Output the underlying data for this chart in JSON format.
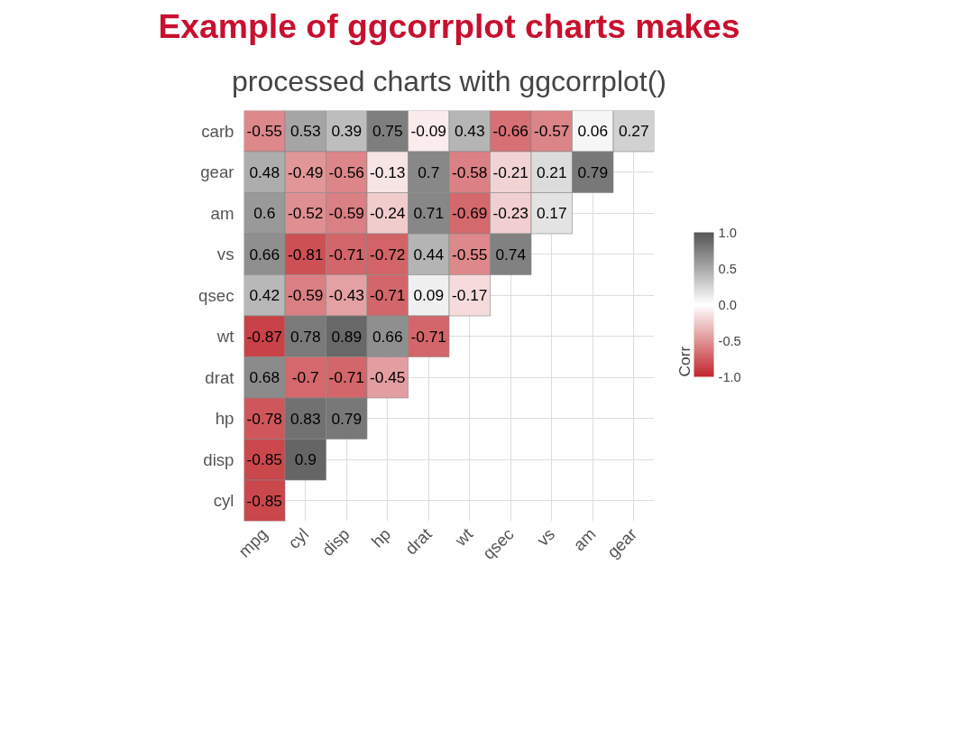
{
  "chart_data": {
    "type": "heatmap",
    "title": "Example of ggcorrplot charts makes",
    "subtitle": "processed charts with ggcorrplot()",
    "clabel": "Corr",
    "categories": [
      "mpg",
      "cyl",
      "disp",
      "hp",
      "drat",
      "wt",
      "qsec",
      "vs",
      "am",
      "gear"
    ],
    "y_categories": [
      "carb",
      "gear",
      "am",
      "vs",
      "qsec",
      "wt",
      "drat",
      "hp",
      "disp",
      "cyl"
    ],
    "cells": [
      [
        -0.55,
        0.53,
        0.39,
        0.75,
        -0.09,
        0.43,
        -0.66,
        -0.57,
        0.06,
        0.27
      ],
      [
        0.48,
        -0.49,
        -0.56,
        -0.13,
        0.7,
        -0.58,
        -0.21,
        0.21,
        0.79,
        null
      ],
      [
        0.6,
        -0.52,
        -0.59,
        -0.24,
        0.71,
        -0.69,
        -0.23,
        0.17,
        null,
        null
      ],
      [
        0.66,
        -0.81,
        -0.71,
        -0.72,
        0.44,
        -0.55,
        0.74,
        null,
        null,
        null
      ],
      [
        0.42,
        -0.59,
        -0.43,
        -0.71,
        0.09,
        -0.17,
        null,
        null,
        null,
        null
      ],
      [
        -0.87,
        0.78,
        0.89,
        0.66,
        -0.71,
        null,
        null,
        null,
        null,
        null
      ],
      [
        0.68,
        -0.7,
        -0.71,
        -0.45,
        null,
        null,
        null,
        null,
        null,
        null
      ],
      [
        -0.78,
        0.83,
        0.79,
        null,
        null,
        null,
        null,
        null,
        null,
        null
      ],
      [
        -0.85,
        0.9,
        null,
        null,
        null,
        null,
        null,
        null,
        null,
        null
      ],
      [
        -0.85,
        null,
        null,
        null,
        null,
        null,
        null,
        null,
        null,
        null
      ]
    ],
    "clim": [
      -1,
      1
    ],
    "cticks": [
      {
        "value": -1,
        "label": "-1.0"
      },
      {
        "value": -0.5,
        "label": "-0.5"
      },
      {
        "value": 0,
        "label": "0.0"
      },
      {
        "value": 0.5,
        "label": "0.5"
      },
      {
        "value": 1,
        "label": "1.0"
      }
    ],
    "grid": true,
    "data_labels": true
  }
}
